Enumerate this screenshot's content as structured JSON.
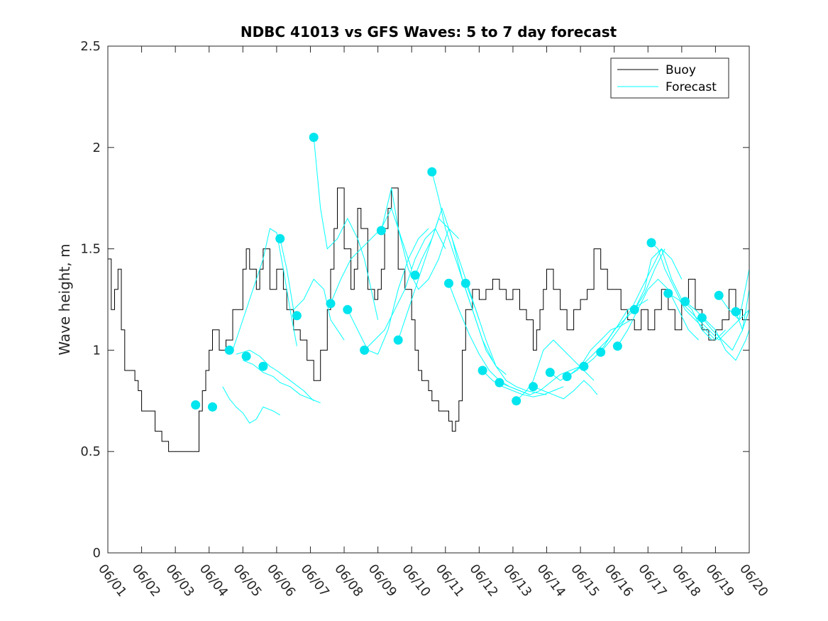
{
  "chart_data": {
    "type": "line",
    "title": "NDBC 41013 vs GFS Waves: 5 to 7 day forecast",
    "xlabel": "",
    "ylabel": "Wave height, m",
    "x_unit": "days (June)",
    "xlim": [
      1,
      20
    ],
    "ylim": [
      0,
      2.5
    ],
    "xticks": [
      1,
      2,
      3,
      4,
      5,
      6,
      7,
      8,
      9,
      10,
      11,
      12,
      13,
      14,
      15,
      16,
      17,
      18,
      19,
      20
    ],
    "xtick_labels": [
      "06/01",
      "06/02",
      "06/03",
      "06/04",
      "06/05",
      "06/06",
      "06/07",
      "06/08",
      "06/09",
      "06/10",
      "06/11",
      "06/12",
      "06/13",
      "06/14",
      "06/15",
      "06/16",
      "06/17",
      "06/18",
      "06/19",
      "06/20"
    ],
    "yticks": [
      0,
      0.5,
      1,
      1.5,
      2,
      2.5
    ],
    "ytick_labels": [
      "0",
      "0.5",
      "1",
      "1.5",
      "2",
      "2.5"
    ],
    "grid": false,
    "legend": {
      "position": "top-right",
      "entries": [
        "Buoy",
        "Forecast"
      ]
    },
    "colors": {
      "buoy": "#000000",
      "forecast": "#00ffff",
      "marker": "#00e5ee"
    },
    "buoy": {
      "name": "Buoy",
      "x": [
        1.0,
        1.1,
        1.2,
        1.3,
        1.4,
        1.5,
        1.6,
        1.8,
        1.9,
        2.0,
        2.2,
        2.4,
        2.6,
        2.8,
        2.9,
        3.0,
        3.2,
        3.4,
        3.6,
        3.7,
        3.8,
        3.9,
        4.0,
        4.1,
        4.3,
        4.5,
        4.7,
        4.9,
        5.0,
        5.1,
        5.2,
        5.4,
        5.5,
        5.6,
        5.8,
        6.0,
        6.2,
        6.3,
        6.5,
        6.7,
        6.9,
        7.1,
        7.3,
        7.5,
        7.6,
        7.7,
        7.8,
        8.0,
        8.2,
        8.3,
        8.4,
        8.5,
        8.7,
        8.9,
        9.0,
        9.1,
        9.2,
        9.3,
        9.4,
        9.6,
        9.8,
        10.0,
        10.1,
        10.2,
        10.3,
        10.5,
        10.6,
        10.8,
        11.0,
        11.1,
        11.2,
        11.3,
        11.4,
        11.5,
        11.6,
        11.8,
        12.0,
        12.2,
        12.4,
        12.6,
        12.8,
        13.0,
        13.2,
        13.4,
        13.6,
        13.7,
        13.8,
        13.9,
        14.0,
        14.2,
        14.4,
        14.6,
        14.8,
        15.0,
        15.2,
        15.4,
        15.6,
        15.8,
        16.0,
        16.2,
        16.4,
        16.6,
        16.8,
        17.0,
        17.2,
        17.4,
        17.6,
        17.8,
        18.0,
        18.2,
        18.4,
        18.6,
        18.8,
        19.0,
        19.2,
        19.4,
        19.6,
        19.8,
        20.0
      ],
      "y": [
        1.45,
        1.2,
        1.3,
        1.4,
        1.1,
        0.9,
        0.9,
        0.85,
        0.8,
        0.7,
        0.7,
        0.6,
        0.55,
        0.5,
        0.5,
        0.5,
        0.5,
        0.5,
        0.5,
        0.7,
        0.8,
        0.9,
        1.0,
        1.1,
        1.0,
        1.05,
        1.2,
        1.2,
        1.4,
        1.5,
        1.4,
        1.3,
        1.4,
        1.5,
        1.3,
        1.4,
        1.3,
        1.2,
        1.1,
        1.05,
        0.95,
        0.85,
        1.0,
        1.2,
        1.4,
        1.6,
        1.8,
        1.5,
        1.3,
        1.4,
        1.7,
        1.6,
        1.3,
        1.25,
        1.3,
        1.4,
        1.6,
        1.7,
        1.8,
        1.4,
        1.3,
        1.15,
        1.0,
        0.9,
        0.85,
        0.8,
        0.75,
        0.7,
        0.7,
        0.65,
        0.6,
        0.65,
        0.75,
        1.0,
        1.2,
        1.3,
        1.25,
        1.3,
        1.35,
        1.3,
        1.25,
        1.3,
        1.2,
        1.15,
        1.0,
        1.1,
        1.2,
        1.3,
        1.4,
        1.3,
        1.2,
        1.1,
        1.2,
        1.25,
        1.3,
        1.5,
        1.4,
        1.3,
        1.3,
        1.2,
        1.15,
        1.1,
        1.2,
        1.1,
        1.2,
        1.3,
        1.2,
        1.1,
        1.25,
        1.35,
        1.2,
        1.1,
        1.05,
        1.1,
        1.15,
        1.3,
        1.2,
        1.15,
        1.1
      ]
    },
    "forecast_runs": [
      {
        "x": [
          4.4,
          4.6,
          4.8,
          5.0,
          5.2,
          5.4,
          5.6,
          5.9,
          6.1
        ],
        "y": [
          0.82,
          0.76,
          0.72,
          0.69,
          0.64,
          0.66,
          0.72,
          0.7,
          0.68
        ]
      },
      {
        "x": [
          4.8,
          5.0,
          5.2,
          5.5,
          5.8,
          6.0,
          6.4,
          6.8,
          7.1
        ],
        "y": [
          0.98,
          0.99,
          1.0,
          0.97,
          0.92,
          0.9,
          0.85,
          0.8,
          0.75
        ]
      },
      {
        "x": [
          5.0,
          5.3,
          5.6,
          5.9,
          6.1,
          6.4,
          6.7,
          7.0,
          7.3
        ],
        "y": [
          0.95,
          0.93,
          0.89,
          0.87,
          0.84,
          0.82,
          0.78,
          0.76,
          0.74
        ]
      },
      {
        "x": [
          4.7,
          5.0,
          5.3,
          5.6,
          5.8,
          6.0,
          6.2,
          6.4,
          6.6
        ],
        "y": [
          1.0,
          1.15,
          1.3,
          1.45,
          1.6,
          1.58,
          1.4,
          1.2,
          1.02
        ]
      },
      {
        "x": [
          6.1,
          6.3,
          6.5,
          6.8,
          7.1,
          7.4,
          7.6,
          7.8,
          8.0
        ],
        "y": [
          1.55,
          1.4,
          1.2,
          1.25,
          1.35,
          1.3,
          1.15,
          1.1,
          1.05
        ]
      },
      {
        "x": [
          7.1,
          7.3,
          7.5,
          7.8,
          8.1,
          8.4,
          8.6,
          8.8,
          9.0
        ],
        "y": [
          2.05,
          1.7,
          1.5,
          1.55,
          1.65,
          1.55,
          1.45,
          1.3,
          1.15
        ]
      },
      {
        "x": [
          7.6,
          7.9,
          8.2,
          8.5,
          8.8,
          9.1,
          9.4,
          9.7,
          10.0
        ],
        "y": [
          1.23,
          1.35,
          1.45,
          1.5,
          1.55,
          1.6,
          1.7,
          1.55,
          1.4
        ]
      },
      {
        "x": [
          8.1,
          8.4,
          8.7,
          9.0,
          9.3,
          9.6,
          9.9,
          10.2,
          10.5
        ],
        "y": [
          1.2,
          1.1,
          1.0,
          0.98,
          1.1,
          1.3,
          1.45,
          1.55,
          1.6
        ]
      },
      {
        "x": [
          8.6,
          8.9,
          9.2,
          9.5,
          9.8,
          10.1,
          10.4,
          10.7,
          11.0
        ],
        "y": [
          1.0,
          1.05,
          1.1,
          1.2,
          1.3,
          1.45,
          1.55,
          1.6,
          1.5
        ]
      },
      {
        "x": [
          9.1,
          9.4,
          9.6,
          9.9,
          10.2,
          10.5,
          10.8,
          11.1,
          11.4
        ],
        "y": [
          1.59,
          1.8,
          1.6,
          1.4,
          1.3,
          1.35,
          1.45,
          1.6,
          1.55
        ]
      },
      {
        "x": [
          9.6,
          9.9,
          10.2,
          10.5,
          10.8,
          11.1,
          11.4,
          11.7,
          12.0
        ],
        "y": [
          1.05,
          1.2,
          1.35,
          1.5,
          1.65,
          1.6,
          1.45,
          1.3,
          1.15
        ]
      },
      {
        "x": [
          10.1,
          10.3,
          10.6,
          10.9,
          11.2,
          11.5,
          11.8,
          12.1,
          12.4
        ],
        "y": [
          1.37,
          1.45,
          1.55,
          1.7,
          1.55,
          1.35,
          1.2,
          1.05,
          0.95
        ]
      },
      {
        "x": [
          10.6,
          10.8,
          11.0,
          11.3,
          11.6,
          11.9,
          12.2,
          12.5,
          12.8
        ],
        "y": [
          1.88,
          1.75,
          1.6,
          1.45,
          1.3,
          1.15,
          1.0,
          0.92,
          0.88
        ]
      },
      {
        "x": [
          11.1,
          11.4,
          11.7,
          12.0,
          12.3,
          12.6,
          12.9,
          13.2,
          13.5
        ],
        "y": [
          1.33,
          1.2,
          1.08,
          0.98,
          0.9,
          0.85,
          0.82,
          0.8,
          0.78
        ]
      },
      {
        "x": [
          11.6,
          11.9,
          12.2,
          12.5,
          12.8,
          13.1,
          13.4,
          13.7,
          14.0
        ],
        "y": [
          1.33,
          1.2,
          1.05,
          0.92,
          0.85,
          0.82,
          0.8,
          0.79,
          0.78
        ]
      },
      {
        "x": [
          12.1,
          12.4,
          12.7,
          13.0,
          13.3,
          13.6,
          13.9,
          14.2,
          14.5
        ],
        "y": [
          0.9,
          0.85,
          0.82,
          0.8,
          0.78,
          0.77,
          0.78,
          0.8,
          0.82
        ]
      },
      {
        "x": [
          12.6,
          12.9,
          13.2,
          13.5,
          13.8,
          14.1,
          14.4,
          14.7,
          15.0
        ],
        "y": [
          0.84,
          0.82,
          0.8,
          0.78,
          0.8,
          0.84,
          0.88,
          0.9,
          0.92
        ]
      },
      {
        "x": [
          13.1,
          13.4,
          13.6,
          13.9,
          14.2,
          14.5,
          14.8,
          15.1,
          15.4
        ],
        "y": [
          0.75,
          0.8,
          0.85,
          1.0,
          1.05,
          1.0,
          0.95,
          0.9,
          0.85
        ]
      },
      {
        "x": [
          13.6,
          13.9,
          14.2,
          14.5,
          14.8,
          15.1,
          15.3,
          15.5
        ],
        "y": [
          0.82,
          0.8,
          0.78,
          0.76,
          0.8,
          0.85,
          0.82,
          0.78
        ]
      },
      {
        "x": [
          14.1,
          14.4,
          14.7,
          15.0,
          15.3,
          15.6,
          15.9,
          16.2,
          16.5
        ],
        "y": [
          0.89,
          0.85,
          0.88,
          0.92,
          1.0,
          1.05,
          1.1,
          1.12,
          1.15
        ]
      },
      {
        "x": [
          14.6,
          14.9,
          15.2,
          15.5,
          15.8,
          16.1,
          16.4,
          16.7,
          17.0
        ],
        "y": [
          0.87,
          0.9,
          0.95,
          1.0,
          1.05,
          1.12,
          1.2,
          1.22,
          1.25
        ]
      },
      {
        "x": [
          15.1,
          15.4,
          15.7,
          16.0,
          16.3,
          16.6,
          16.9,
          17.2,
          17.5
        ],
        "y": [
          0.92,
          0.96,
          1.02,
          1.1,
          1.15,
          1.2,
          1.28,
          1.4,
          1.5
        ]
      },
      {
        "x": [
          15.6,
          15.9,
          16.2,
          16.5,
          16.8,
          17.1,
          17.4,
          17.7,
          18.0
        ],
        "y": [
          0.99,
          1.05,
          1.12,
          1.2,
          1.3,
          1.4,
          1.5,
          1.45,
          1.35
        ]
      },
      {
        "x": [
          16.1,
          16.4,
          16.7,
          17.0,
          17.3,
          17.6,
          17.9,
          18.2,
          18.5
        ],
        "y": [
          1.02,
          1.1,
          1.2,
          1.3,
          1.35,
          1.3,
          1.2,
          1.1,
          1.05
        ]
      },
      {
        "x": [
          16.6,
          16.9,
          17.1,
          17.4,
          17.7,
          18.0,
          18.3,
          18.6,
          18.9
        ],
        "y": [
          1.2,
          1.3,
          1.45,
          1.5,
          1.35,
          1.25,
          1.2,
          1.1,
          1.05
        ]
      },
      {
        "x": [
          17.1,
          17.3,
          17.5,
          17.8,
          18.1,
          18.4,
          18.7,
          19.0,
          19.3
        ],
        "y": [
          1.53,
          1.5,
          1.4,
          1.3,
          1.2,
          1.15,
          1.1,
          1.05,
          1.1
        ]
      },
      {
        "x": [
          17.6,
          17.9,
          18.2,
          18.5,
          18.8,
          19.1,
          19.4,
          19.7,
          20.0
        ],
        "y": [
          1.28,
          1.25,
          1.2,
          1.15,
          1.1,
          1.05,
          1.1,
          1.15,
          1.2
        ]
      },
      {
        "x": [
          18.1,
          18.4,
          18.7,
          19.0,
          19.3,
          19.6,
          19.9,
          20.0
        ],
        "y": [
          1.24,
          1.2,
          1.15,
          1.1,
          1.0,
          0.95,
          1.05,
          1.1
        ]
      },
      {
        "x": [
          18.6,
          18.9,
          19.2,
          19.5,
          19.8,
          20.0
        ],
        "y": [
          1.16,
          1.1,
          1.05,
          1.0,
          1.1,
          1.2
        ]
      },
      {
        "x": [
          19.1,
          19.4,
          19.7,
          20.0
        ],
        "y": [
          1.27,
          1.2,
          1.15,
          1.4
        ]
      },
      {
        "x": [
          19.6,
          19.8,
          20.0
        ],
        "y": [
          1.19,
          1.1,
          1.3
        ]
      }
    ],
    "forecast_markers": {
      "x": [
        3.6,
        4.1,
        4.6,
        5.1,
        5.6,
        6.1,
        6.6,
        7.1,
        7.6,
        8.1,
        8.6,
        9.1,
        9.6,
        10.1,
        10.6,
        11.1,
        11.6,
        12.1,
        12.6,
        13.1,
        13.6,
        14.1,
        14.6,
        15.1,
        15.6,
        16.1,
        16.6,
        17.1,
        17.6,
        18.1,
        18.6,
        19.1,
        19.6
      ],
      "y": [
        0.73,
        0.72,
        1.0,
        0.97,
        0.92,
        1.55,
        1.17,
        2.05,
        1.23,
        1.2,
        1.0,
        1.59,
        1.05,
        1.37,
        1.88,
        1.33,
        1.33,
        0.9,
        0.84,
        0.75,
        0.82,
        0.89,
        0.87,
        0.92,
        0.99,
        1.02,
        1.2,
        1.53,
        1.28,
        1.24,
        1.16,
        1.27,
        1.19
      ]
    }
  }
}
